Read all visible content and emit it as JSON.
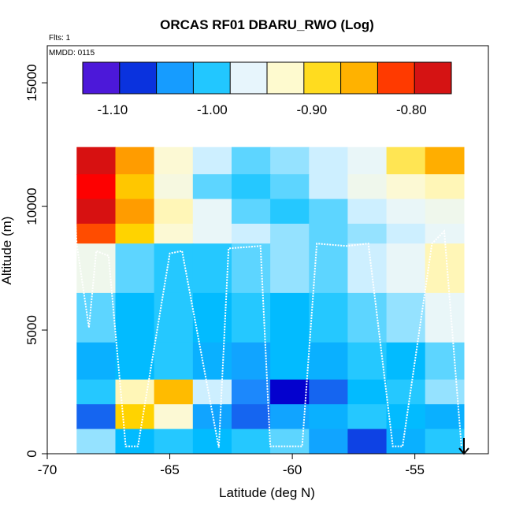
{
  "chart_data": {
    "type": "heatmap",
    "title": "ORCAS RF01 DBARU_RWO (Log)",
    "notes": [
      "Flts: 1",
      "MMDD: 0115"
    ],
    "xlabel": "Latitude (deg N)",
    "ylabel": "Altitude (m)",
    "xlim": [
      -70,
      -52
    ],
    "ylim": [
      0,
      16500
    ],
    "x_ticks": [
      -70,
      -65,
      -60,
      -55
    ],
    "x_tick_labels": [
      "-70",
      "-65",
      "-60",
      "-55"
    ],
    "y_ticks": [
      0,
      5000,
      10000,
      15000
    ],
    "y_tick_labels": [
      "0",
      "5000",
      "10000",
      "15000"
    ],
    "grid": false,
    "colorbar": {
      "range": [
        -1.13,
        -0.76
      ],
      "ticks": [
        -1.1,
        -1.0,
        -0.9,
        -0.8
      ],
      "tick_labels": [
        "-1.10",
        "-1.00",
        "-0.90",
        "-0.80"
      ],
      "colors": [
        "#8a2be2",
        "#0000cd",
        "#1e90ff",
        "#00bfff",
        "#e6f5ff",
        "#fffacd",
        "#ffd700",
        "#ffa500",
        "#ff0000",
        "#b22222"
      ],
      "location": "top-inside"
    },
    "bands": [
      {
        "alt": [
          12400,
          11300
        ],
        "lat": [
          -68.8,
          -53.0
        ],
        "levels": [
          -0.78,
          -0.84,
          -0.93,
          -0.97,
          -0.99,
          -0.98,
          -0.97,
          -0.96,
          -0.9,
          -0.85
        ]
      },
      {
        "alt": [
          11300,
          10300
        ],
        "lat": [
          -68.8,
          -53.0
        ],
        "levels": [
          -0.8,
          -0.87,
          -0.94,
          -0.99,
          -1.0,
          -0.99,
          -0.97,
          -0.95,
          -0.93,
          -0.92
        ]
      },
      {
        "alt": [
          10300,
          9300
        ],
        "lat": [
          -68.8,
          -53.0
        ],
        "levels": [
          -0.78,
          -0.84,
          -0.92,
          -0.96,
          -0.99,
          -1.0,
          -0.99,
          -0.97,
          -0.96,
          -0.95
        ]
      },
      {
        "alt": [
          9300,
          8500
        ],
        "lat": [
          -68.8,
          -53.0
        ],
        "levels": [
          -0.82,
          -0.88,
          -0.93,
          -0.96,
          -0.97,
          -0.98,
          -0.99,
          -0.98,
          -0.97,
          -0.96
        ]
      },
      {
        "alt": [
          8500,
          6500
        ],
        "lat": [
          -68.8,
          -53.0
        ],
        "levels": [
          -0.95,
          -0.99,
          -1.0,
          -1.0,
          -0.99,
          -0.98,
          -0.99,
          -0.97,
          -0.96,
          -0.92
        ]
      },
      {
        "alt": [
          6500,
          4500
        ],
        "lat": [
          -68.8,
          -53.0
        ],
        "levels": [
          -0.99,
          -1.01,
          -1.0,
          -1.01,
          -1.0,
          -1.01,
          -1.0,
          -0.99,
          -0.98,
          -0.96
        ]
      },
      {
        "alt": [
          4500,
          3000
        ],
        "lat": [
          -68.8,
          -53.0
        ],
        "levels": [
          -1.02,
          -1.01,
          -1.0,
          -1.02,
          -1.03,
          -1.01,
          -1.02,
          -1.0,
          -1.01,
          -0.99
        ]
      },
      {
        "alt": [
          3000,
          2000
        ],
        "lat": [
          -68.8,
          -53.0
        ],
        "levels": [
          -1.0,
          -0.92,
          -0.86,
          -0.97,
          -1.05,
          -1.09,
          -1.06,
          -1.01,
          -1.0,
          -0.98
        ]
      },
      {
        "alt": [
          2000,
          1000
        ],
        "lat": [
          -68.8,
          -53.0
        ],
        "levels": [
          -1.06,
          -0.88,
          -0.93,
          -1.03,
          -1.06,
          -1.03,
          -1.02,
          -1.0,
          -1.01,
          -1.02
        ]
      },
      {
        "alt": [
          1000,
          0
        ],
        "lat": [
          -68.8,
          -53.0
        ],
        "levels": [
          -0.98,
          -1.01,
          -1.0,
          -1.01,
          -1.0,
          -0.99,
          -1.03,
          -1.07,
          -1.02,
          -1.0
        ]
      }
    ],
    "flight_track": {
      "lat": [
        -69.0,
        -68.8,
        -68.3,
        -68.0,
        -67.5,
        -66.8,
        -66.3,
        -65.0,
        -64.5,
        -63.0,
        -62.6,
        -61.3,
        -60.9,
        -59.6,
        -59.0,
        -57.8,
        -56.9,
        -55.9,
        -55.5,
        -54.3,
        -53.8,
        -53.1
      ],
      "alt": [
        12300,
        8500,
        5100,
        8200,
        8000,
        300,
        300,
        8100,
        8200,
        250,
        8300,
        8400,
        300,
        300,
        8500,
        8400,
        8500,
        300,
        300,
        8500,
        9000,
        300
      ]
    }
  }
}
